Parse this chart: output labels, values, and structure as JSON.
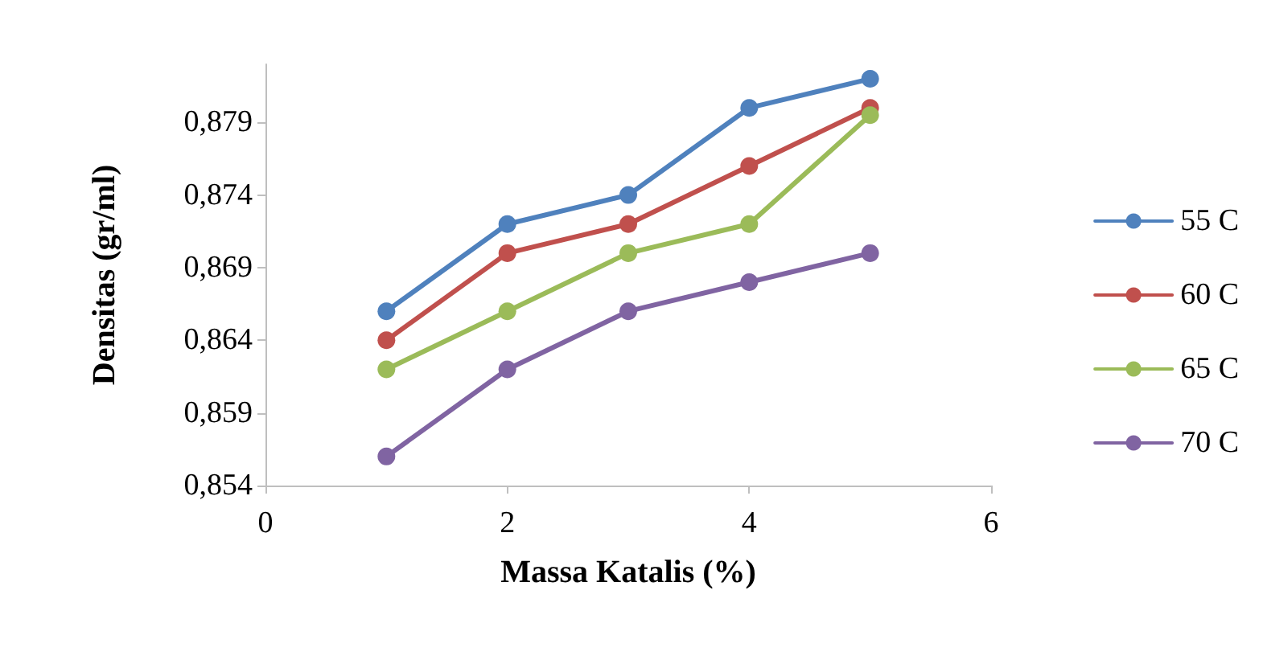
{
  "chart_data": {
    "type": "line",
    "xlabel": "Massa Katalis (%)",
    "ylabel": "Densitas (gr/ml)",
    "x": [
      1,
      2,
      3,
      4,
      5
    ],
    "series": [
      {
        "name": "55 C",
        "color": "#4f81bd",
        "values": [
          0.866,
          0.872,
          0.874,
          0.88,
          0.882
        ]
      },
      {
        "name": "60 C",
        "color": "#c0504d",
        "values": [
          0.864,
          0.87,
          0.872,
          0.876,
          0.88
        ]
      },
      {
        "name": "65 C",
        "color": "#9bbb59",
        "values": [
          0.862,
          0.866,
          0.87,
          0.872,
          0.8795
        ]
      },
      {
        "name": "70 C",
        "color": "#8064a2",
        "values": [
          0.856,
          0.862,
          0.866,
          0.868,
          0.87
        ]
      }
    ],
    "xlim": [
      0,
      6
    ],
    "xticks": [
      0,
      2,
      4,
      6
    ],
    "ylim": [
      0.854,
      0.883
    ],
    "yticks": [
      {
        "value": 0.854,
        "label": "0,854"
      },
      {
        "value": 0.859,
        "label": "0,859"
      },
      {
        "value": 0.864,
        "label": "0,864"
      },
      {
        "value": 0.869,
        "label": "0,869"
      },
      {
        "value": 0.874,
        "label": "0,874"
      },
      {
        "value": 0.879,
        "label": "0,879"
      }
    ],
    "grid": false,
    "legend": "right",
    "marker": "circle",
    "line_style": "solid"
  }
}
